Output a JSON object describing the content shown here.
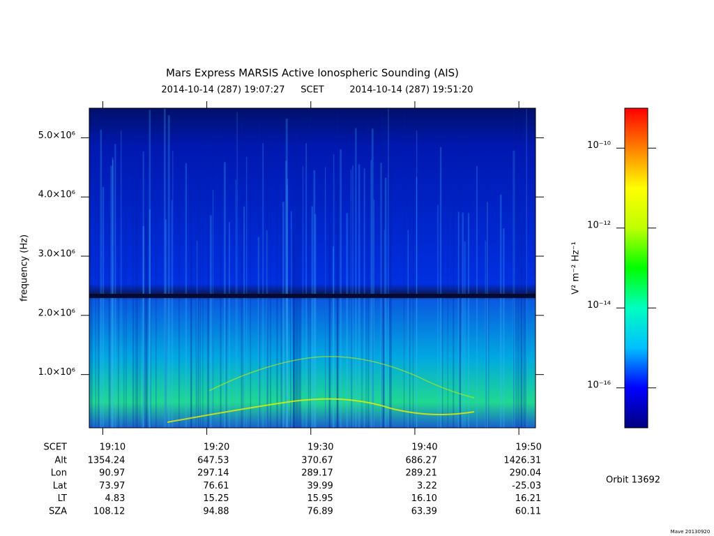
{
  "chart_data": {
    "type": "spectrogram",
    "title": "Mars Express MARSIS Active Ionospheric Sounding (AIS)",
    "start_time": "2014-10-14 (287) 19:07:27",
    "time_system": "SCET",
    "end_time": "2014-10-14 (287) 19:51:20",
    "y_label": "frequency (Hz)",
    "ylim": [
      100000,
      5500000
    ],
    "yticks": [
      {
        "value": 1000000,
        "label": "1.0×10⁶"
      },
      {
        "value": 2000000,
        "label": "2.0×10⁶"
      },
      {
        "value": 3000000,
        "label": "3.0×10⁶"
      },
      {
        "value": 4000000,
        "label": "4.0×10⁶"
      },
      {
        "value": 5000000,
        "label": "5.0×10⁶"
      }
    ],
    "xlim": [
      1148.7,
      1191.6
    ],
    "x_row_label": "SCET",
    "xticks": [
      {
        "value": 1150,
        "label": "19:10"
      },
      {
        "value": 1160,
        "label": "19:20"
      },
      {
        "value": 1170,
        "label": "19:30"
      },
      {
        "value": 1180,
        "label": "19:40"
      },
      {
        "value": 1190,
        "label": "19:50"
      }
    ],
    "ephemeris": [
      {
        "name": "Alt",
        "values": [
          1354.24,
          647.53,
          370.67,
          686.27,
          1426.31
        ]
      },
      {
        "name": "Lon",
        "values": [
          90.97,
          297.14,
          289.17,
          289.21,
          290.04
        ]
      },
      {
        "name": "Lat",
        "values": [
          73.97,
          76.61,
          39.99,
          3.22,
          -25.03
        ]
      },
      {
        "name": "LT",
        "values": [
          4.83,
          15.25,
          15.95,
          16.1,
          16.21
        ],
        "value_labels": [
          "4.83",
          "15.25",
          "15.95",
          "16.10",
          "16.21"
        ]
      },
      {
        "name": "SZA",
        "values": [
          108.12,
          94.88,
          76.89,
          63.39,
          60.11
        ]
      }
    ],
    "colorbar": {
      "label": "V² m⁻² Hz⁻¹",
      "log": true,
      "lim": [
        1e-17,
        1e-09
      ],
      "ticks": [
        {
          "value": 1e-10,
          "label": "10⁻¹⁰"
        },
        {
          "value": 1e-12,
          "label": "10⁻¹²"
        },
        {
          "value": 1e-14,
          "label": "10⁻¹⁴"
        },
        {
          "value": 1e-16,
          "label": "10⁻¹⁶"
        }
      ],
      "colors": [
        "#00007f",
        "#0000ff",
        "#00bfff",
        "#00ffbf",
        "#00ff00",
        "#bfff00",
        "#ffff00",
        "#ff8000",
        "#ff0000"
      ]
    },
    "orbit": "Orbit 13692",
    "footer": "Mave 20130920"
  }
}
